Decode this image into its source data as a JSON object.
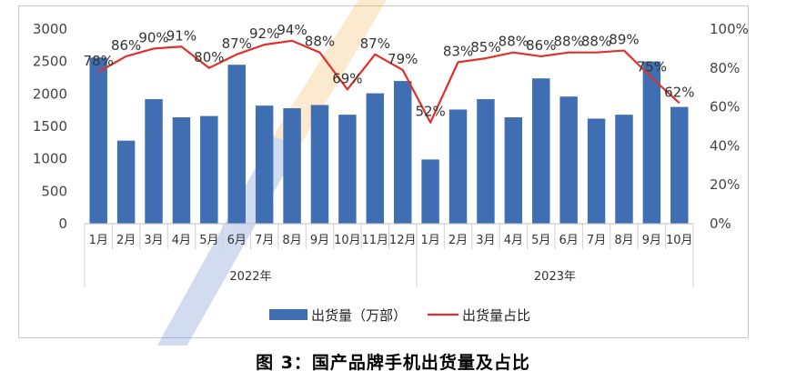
{
  "caption": "图 3：国产品牌手机出货量及占比",
  "chart_data": {
    "type": "bar",
    "title": "",
    "xlabel": "",
    "ylabel": "",
    "ylim": [
      0,
      3000
    ],
    "y2lim": [
      0,
      100
    ],
    "y_ticks": [
      "0",
      "500",
      "1000",
      "1500",
      "2000",
      "2500",
      "3000"
    ],
    "y2_ticks": [
      "0%",
      "20%",
      "40%",
      "60%",
      "80%",
      "100%"
    ],
    "categories": [
      "1月",
      "2月",
      "3月",
      "4月",
      "5月",
      "6月",
      "7月",
      "8月",
      "9月",
      "10月",
      "11月",
      "12月",
      "1月",
      "2月",
      "3月",
      "4月",
      "5月",
      "6月",
      "7月",
      "8月",
      "9月",
      "10月"
    ],
    "groups": [
      {
        "label": "2022年",
        "start": 0,
        "end": 11
      },
      {
        "label": "2023年",
        "start": 12,
        "end": 21
      }
    ],
    "series": [
      {
        "name": "出货量（万部）",
        "type": "bar",
        "axis": "left",
        "color": "#3f6fb2",
        "values": [
          2560,
          1280,
          1920,
          1640,
          1660,
          2450,
          1820,
          1780,
          1830,
          1680,
          2010,
          2200,
          990,
          1760,
          1920,
          1640,
          2240,
          1960,
          1620,
          1680,
          2500,
          1800
        ]
      },
      {
        "name": "出货量占比",
        "type": "line",
        "axis": "right",
        "color": "#e0302a",
        "values": [
          78,
          86,
          90,
          91,
          80,
          87,
          92,
          94,
          88,
          69,
          87,
          79,
          52,
          83,
          85,
          88,
          86,
          88,
          88,
          89,
          75,
          62
        ],
        "labels": [
          "78%",
          "86%",
          "90%",
          "91%",
          "80%",
          "87%",
          "92%",
          "94%",
          "88%",
          "69%",
          "87%",
          "79%",
          "52%",
          "83%",
          "85%",
          "88%",
          "86%",
          "88%",
          "88%",
          "89%",
          "75%",
          "62%"
        ]
      }
    ],
    "legend": "bottom",
    "grid": false
  }
}
